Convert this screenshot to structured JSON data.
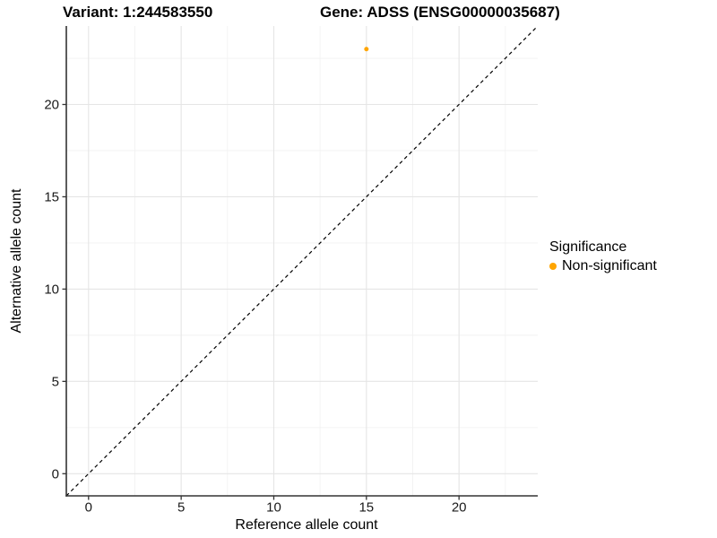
{
  "header": {
    "variant_title": "Variant: 1:244583550",
    "gene_title": "Gene: ADSS (ENSG00000035687)"
  },
  "legend": {
    "title": "Significance",
    "items": [
      {
        "label": "Non-significant",
        "color": "#FFA500",
        "marker": "circle"
      }
    ]
  },
  "chart_data": {
    "type": "scatter",
    "title": "Variant: 1:244583550  Gene: ADSS (ENSG00000035687)",
    "xlabel": "Reference allele count",
    "ylabel": "Alternative allele count",
    "xlim": [
      -1.2,
      24.25
    ],
    "ylim": [
      -1.2,
      24.25
    ],
    "xticks": [
      0,
      5,
      10,
      15,
      20
    ],
    "yticks": [
      0,
      5,
      10,
      15,
      20
    ],
    "minor_xticks": [
      2.5,
      7.5,
      12.5,
      17.5,
      22.5
    ],
    "minor_yticks": [
      2.5,
      7.5,
      12.5,
      17.5,
      22.5
    ],
    "grid": true,
    "legend_position": "right",
    "series": [
      {
        "name": "Non-significant",
        "color": "#FFA500",
        "points": [
          {
            "x": 15,
            "y": 23
          }
        ],
        "marker_radius_px": 2.5
      }
    ],
    "reference_line": {
      "kind": "identity",
      "slope": 1,
      "intercept": 0,
      "style": "dashed",
      "color": "#000000"
    }
  },
  "style": {
    "background": "#ffffff",
    "grid_major": "#e5e5e5",
    "grid_minor": "#f2f2f2",
    "axis_line": "#333333",
    "tick_color": "#333333",
    "tick_label_color": "#1a1a1a"
  }
}
